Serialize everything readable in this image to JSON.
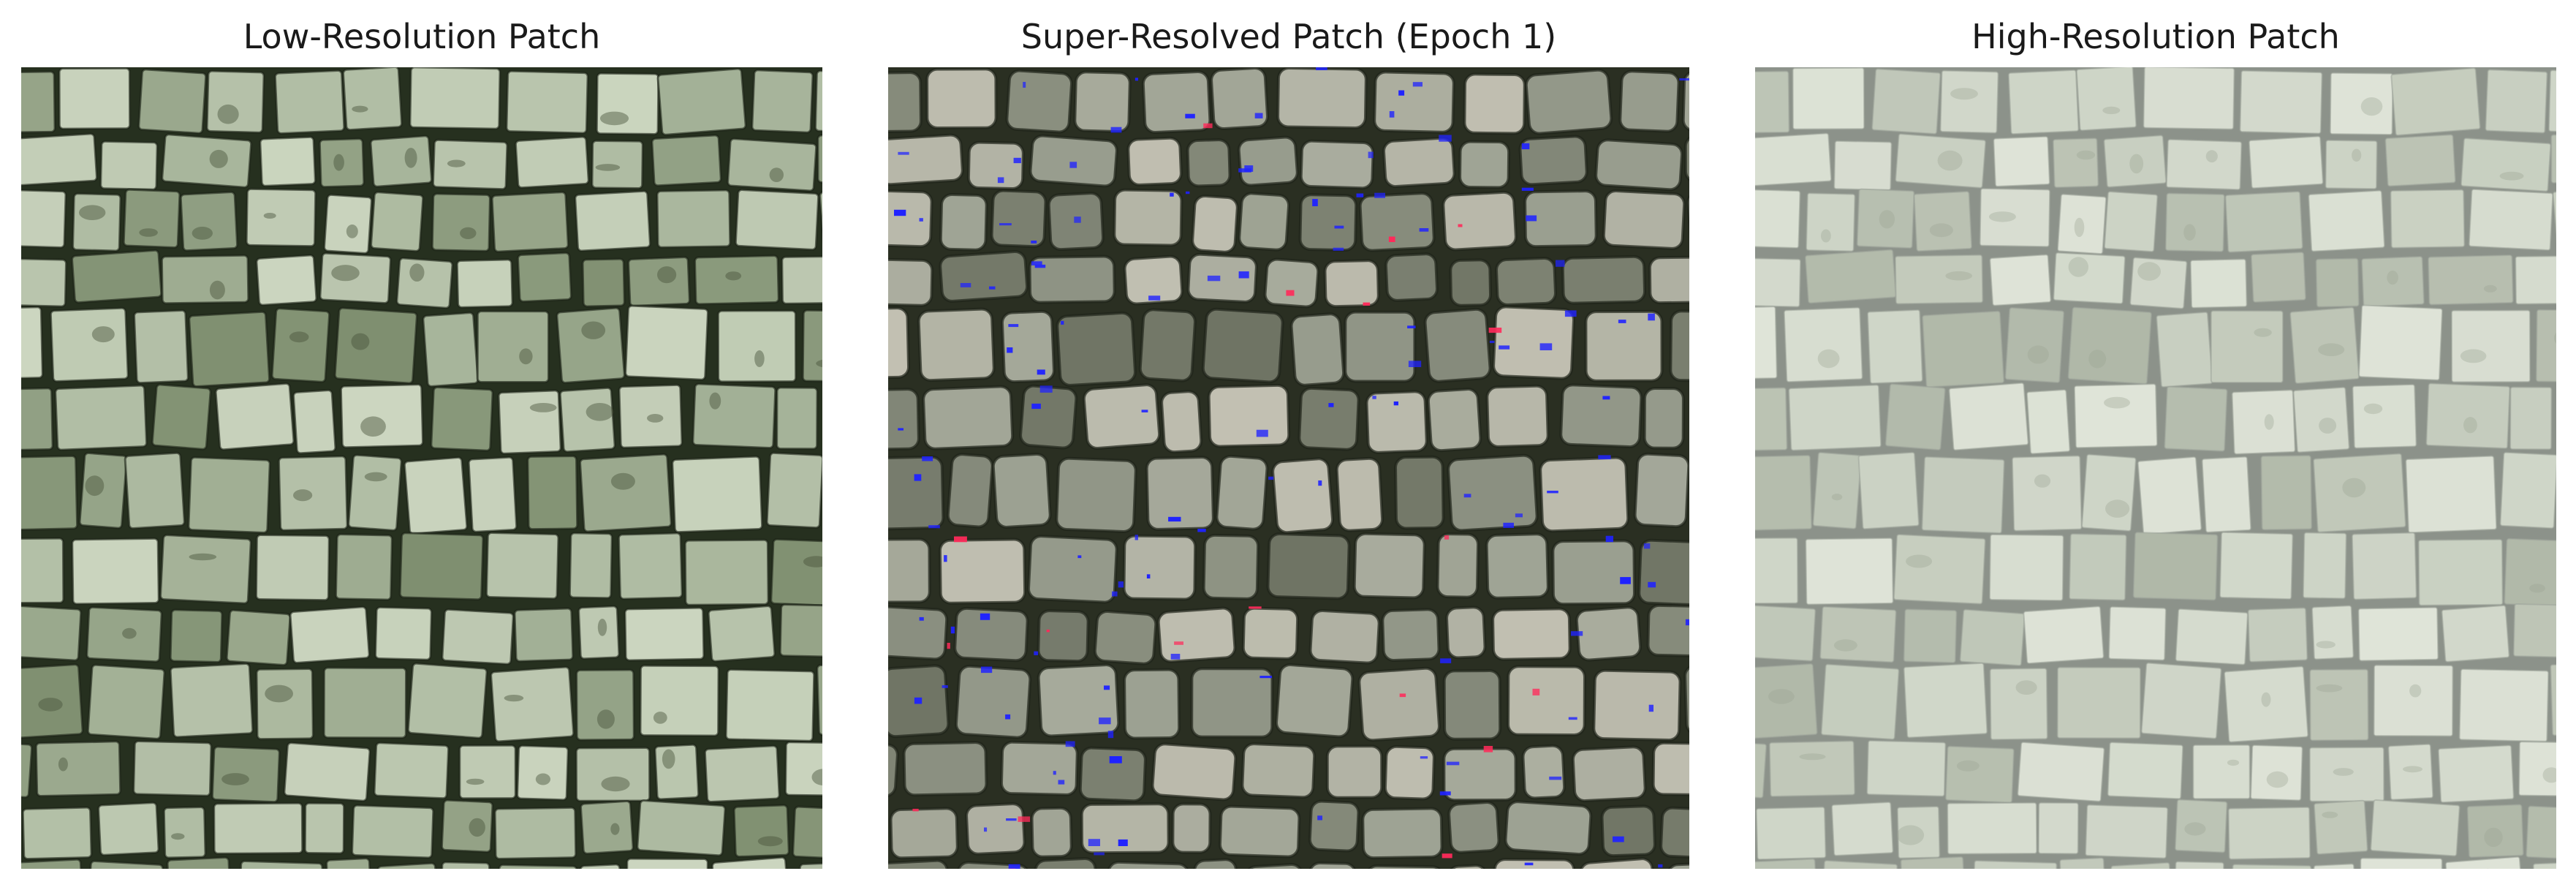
{
  "figure": {
    "panels": [
      {
        "title": "Low-Resolution Patch",
        "palette": {
          "grout": "#26301f",
          "stone_base": "#aebba2",
          "stone_light": "#ccd6c0",
          "stone_dark": "#7f8f70",
          "stain": "#46523a"
        }
      },
      {
        "title": "Super-Resolved Patch (Epoch 1)",
        "palette": {
          "grout": "#2a2f22",
          "stone_base": "#9ea394",
          "stone_light": "#c2c0b2",
          "stone_dark": "#6f7464",
          "artifact": "#1f22ff",
          "artifact_alt": "#ff2a5a"
        }
      },
      {
        "title": "High-Resolution Patch",
        "palette": {
          "grout": "#8c928a",
          "stone_base": "#ccd3c5",
          "stone_light": "#dfe4d8",
          "stone_dark": "#b0b8a8",
          "stain": "#9aa492"
        }
      }
    ]
  }
}
